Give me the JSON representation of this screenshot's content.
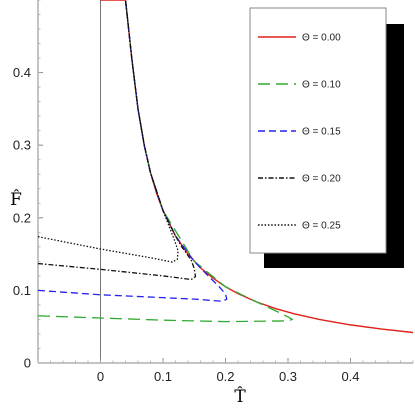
{
  "chart_data": {
    "type": "line",
    "xlabel": "T̂",
    "ylabel": "F̂",
    "xlim": [
      -0.1,
      0.5
    ],
    "ylim": [
      0,
      0.5
    ],
    "xticks": [
      0,
      0.1,
      0.2,
      0.3,
      0.4
    ],
    "yticks": [
      0.1,
      0.2,
      0.3,
      0.4
    ],
    "xtick_labels": [
      "0",
      "0.1",
      "0.2",
      "0.3",
      "0.4"
    ],
    "ytick_labels": [
      "0.1",
      "0.2",
      "0.3",
      "0.4"
    ],
    "grid": false,
    "legend_position": "top-right",
    "series": [
      {
        "name": "Θ = 0.00",
        "color": "#e0201a",
        "dash": "solid",
        "points": [
          [
            0.0,
            0.5
          ],
          [
            0.04,
            0.5
          ],
          [
            0.05,
            0.42
          ],
          [
            0.06,
            0.35
          ],
          [
            0.07,
            0.3
          ],
          [
            0.08,
            0.262
          ],
          [
            0.09,
            0.233
          ],
          [
            0.1,
            0.21
          ],
          [
            0.12,
            0.175
          ],
          [
            0.14,
            0.15
          ],
          [
            0.16,
            0.131
          ],
          [
            0.18,
            0.117
          ],
          [
            0.2,
            0.105
          ],
          [
            0.22,
            0.0955
          ],
          [
            0.25,
            0.084
          ],
          [
            0.28,
            0.075
          ],
          [
            0.31,
            0.0677
          ],
          [
            0.35,
            0.06
          ],
          [
            0.4,
            0.0525
          ],
          [
            0.45,
            0.0467
          ],
          [
            0.5,
            0.042
          ]
        ]
      },
      {
        "name": "Θ = 0.10",
        "color": "#33aa33",
        "dash": "long-dash",
        "points": [
          [
            -0.1,
            0.065
          ],
          [
            0.0,
            0.062
          ],
          [
            0.1,
            0.059
          ],
          [
            0.2,
            0.057
          ],
          [
            0.3,
            0.058
          ],
          [
            0.307,
            0.06
          ],
          [
            0.3,
            0.0635
          ],
          [
            0.28,
            0.072
          ],
          [
            0.25,
            0.084
          ],
          [
            0.2,
            0.105
          ],
          [
            0.15,
            0.14
          ],
          [
            0.1,
            0.21
          ],
          [
            0.08,
            0.262
          ],
          [
            0.07,
            0.3
          ],
          [
            0.06,
            0.35
          ],
          [
            0.05,
            0.42
          ],
          [
            0.04,
            0.5
          ]
        ]
      },
      {
        "name": "Θ = 0.15",
        "color": "#2222ee",
        "dash": "dash",
        "points": [
          [
            -0.1,
            0.1
          ],
          [
            0.0,
            0.094
          ],
          [
            0.1,
            0.09
          ],
          [
            0.15,
            0.088
          ],
          [
            0.195,
            0.085
          ],
          [
            0.202,
            0.088
          ],
          [
            0.2,
            0.095
          ],
          [
            0.19,
            0.105
          ],
          [
            0.17,
            0.122
          ],
          [
            0.15,
            0.14
          ],
          [
            0.12,
            0.175
          ],
          [
            0.1,
            0.21
          ],
          [
            0.08,
            0.262
          ],
          [
            0.07,
            0.3
          ],
          [
            0.06,
            0.35
          ],
          [
            0.05,
            0.42
          ],
          [
            0.04,
            0.5
          ]
        ]
      },
      {
        "name": "Θ = 0.20",
        "color": "#111111",
        "dash": "dash-dot",
        "points": [
          [
            -0.1,
            0.137
          ],
          [
            0.0,
            0.129
          ],
          [
            0.1,
            0.12
          ],
          [
            0.145,
            0.115
          ],
          [
            0.152,
            0.119
          ],
          [
            0.15,
            0.13
          ],
          [
            0.145,
            0.142
          ],
          [
            0.13,
            0.16
          ],
          [
            0.12,
            0.175
          ],
          [
            0.1,
            0.21
          ],
          [
            0.08,
            0.262
          ],
          [
            0.07,
            0.3
          ],
          [
            0.06,
            0.35
          ],
          [
            0.05,
            0.42
          ],
          [
            0.04,
            0.5
          ]
        ]
      },
      {
        "name": "Θ = 0.25",
        "color": "#111111",
        "dash": "dotted",
        "points": [
          [
            -0.1,
            0.174
          ],
          [
            0.0,
            0.157
          ],
          [
            0.08,
            0.145
          ],
          [
            0.115,
            0.139
          ],
          [
            0.123,
            0.143
          ],
          [
            0.124,
            0.155
          ],
          [
            0.118,
            0.17
          ],
          [
            0.1,
            0.21
          ],
          [
            0.08,
            0.262
          ],
          [
            0.07,
            0.3
          ],
          [
            0.06,
            0.35
          ],
          [
            0.05,
            0.42
          ],
          [
            0.04,
            0.5
          ]
        ]
      }
    ]
  }
}
